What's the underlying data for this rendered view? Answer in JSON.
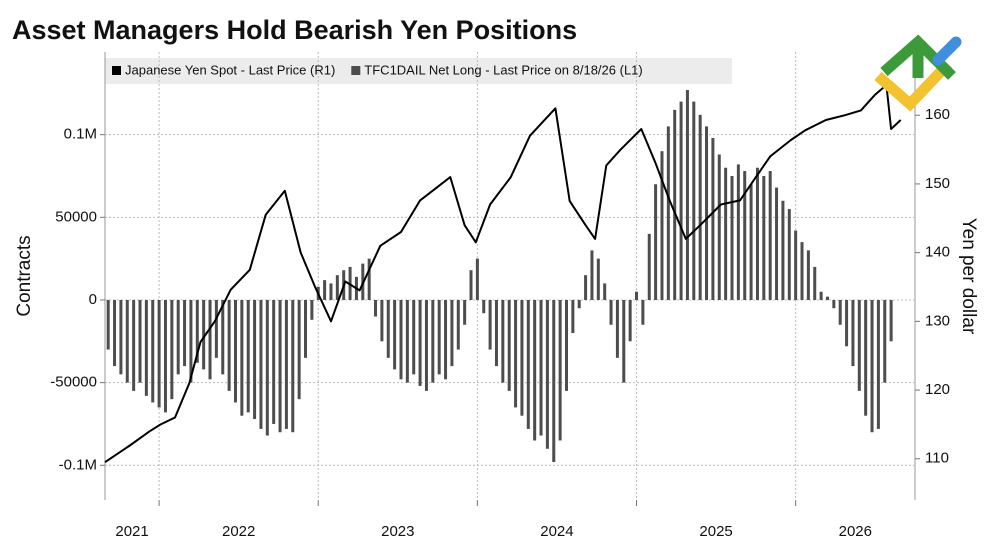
{
  "chart_data": {
    "type": "bar+line",
    "title": "Asset Managers Hold Bearish Yen Positions",
    "ylabel": "Contracts",
    "y2label": "Yen per dollar",
    "xlim": [
      2021.66,
      2026.75
    ],
    "xticks": [
      2021,
      2022,
      2023,
      2024,
      2025,
      2026
    ],
    "ylim": [
      -121000,
      150000
    ],
    "yticks": [
      {
        "value": -100000,
        "label": "-0.1M"
      },
      -50000,
      0,
      50000,
      {
        "value": 100000,
        "label": "0.1M"
      }
    ],
    "y2lim": [
      104,
      169.2
    ],
    "y2ticks": [
      110,
      120,
      130,
      140,
      150,
      160
    ],
    "grid": true,
    "legend": "top-left",
    "series": [
      {
        "name": "Japanese Yen Spot - Last Price (R1)",
        "type": "line",
        "axis": "y2",
        "color": "#000000",
        "x": [
          2021.66,
          2021.82,
          2021.94,
          2022.01,
          2022.1,
          2022.19,
          2022.26,
          2022.35,
          2022.45,
          2022.57,
          2022.67,
          2022.79,
          2022.89,
          2022.98,
          2023.08,
          2023.17,
          2023.26,
          2023.39,
          2023.52,
          2023.64,
          2023.83,
          2023.92,
          2023.99,
          2024.08,
          2024.21,
          2024.33,
          2024.49,
          2024.58,
          2024.68,
          2024.74,
          2024.81,
          2024.9,
          2025.03,
          2025.12,
          2025.21,
          2025.31,
          2025.4,
          2025.53,
          2025.65,
          2025.75,
          2025.84,
          2025.97,
          2026.06,
          2026.19,
          2026.31,
          2026.41,
          2026.5,
          2026.57,
          2026.6,
          2026.66
        ],
        "values": [
          109.5,
          112,
          114,
          115,
          116,
          121,
          127,
          130,
          134.6,
          137.5,
          145.5,
          149,
          140,
          135,
          130,
          135.8,
          134.5,
          141,
          143,
          147.6,
          151,
          144,
          141.5,
          147,
          151,
          157,
          161,
          147.5,
          144,
          142,
          152.7,
          155,
          158,
          153,
          147.5,
          142,
          144,
          147,
          147.6,
          151,
          154,
          156.4,
          157.8,
          159.3,
          160,
          160.7,
          163,
          164.4,
          158,
          159.3
        ]
      },
      {
        "name": "TFC1DAIL Net Long - Last Price on 8/18/26 (L1)",
        "type": "bar",
        "axis": "y",
        "color": "#4d4d4d",
        "x": [
          2021.68,
          2021.72,
          2021.76,
          2021.8,
          2021.84,
          2021.88,
          2021.92,
          2021.96,
          2022.0,
          2022.04,
          2022.08,
          2022.12,
          2022.16,
          2022.2,
          2022.24,
          2022.28,
          2022.32,
          2022.36,
          2022.4,
          2022.44,
          2022.48,
          2022.52,
          2022.56,
          2022.6,
          2022.64,
          2022.68,
          2022.72,
          2022.76,
          2022.8,
          2022.84,
          2022.88,
          2022.92,
          2022.96,
          2023.0,
          2023.04,
          2023.08,
          2023.12,
          2023.16,
          2023.2,
          2023.24,
          2023.28,
          2023.32,
          2023.36,
          2023.4,
          2023.44,
          2023.48,
          2023.52,
          2023.56,
          2023.6,
          2023.64,
          2023.68,
          2023.72,
          2023.76,
          2023.8,
          2023.84,
          2023.88,
          2023.92,
          2023.96,
          2024.0,
          2024.04,
          2024.08,
          2024.12,
          2024.16,
          2024.2,
          2024.24,
          2024.28,
          2024.32,
          2024.36,
          2024.4,
          2024.44,
          2024.48,
          2024.52,
          2024.56,
          2024.6,
          2024.64,
          2024.68,
          2024.72,
          2024.76,
          2024.8,
          2024.84,
          2024.88,
          2024.92,
          2024.96,
          2025.0,
          2025.04,
          2025.08,
          2025.12,
          2025.16,
          2025.2,
          2025.24,
          2025.28,
          2025.32,
          2025.36,
          2025.4,
          2025.44,
          2025.48,
          2025.52,
          2025.56,
          2025.6,
          2025.64,
          2025.68,
          2025.72,
          2025.76,
          2025.8,
          2025.84,
          2025.88,
          2025.92,
          2025.96,
          2026.0,
          2026.04,
          2026.08,
          2026.12,
          2026.16,
          2026.2,
          2026.24,
          2026.28,
          2026.32,
          2026.36,
          2026.4,
          2026.44,
          2026.48,
          2026.52,
          2026.56,
          2026.6
        ],
        "values": [
          -30000,
          -40000,
          -45000,
          -50000,
          -55000,
          -50000,
          -58000,
          -62000,
          -65000,
          -68000,
          -60000,
          -45000,
          -40000,
          -50000,
          -38000,
          -42000,
          -48000,
          -35000,
          -45000,
          -55000,
          -62000,
          -70000,
          -68000,
          -72000,
          -78000,
          -82000,
          -75000,
          -80000,
          -78000,
          -80000,
          -60000,
          -35000,
          -12000,
          8000,
          12000,
          10000,
          15000,
          18000,
          20000,
          14000,
          22000,
          25000,
          -10000,
          -25000,
          -35000,
          -42000,
          -48000,
          -50000,
          -45000,
          -52000,
          -55000,
          -50000,
          -45000,
          -48000,
          -40000,
          -30000,
          -15000,
          18000,
          25000,
          -8000,
          -30000,
          -40000,
          -50000,
          -55000,
          -65000,
          -70000,
          -78000,
          -85000,
          -82000,
          -90000,
          -98000,
          -85000,
          -55000,
          -20000,
          -5000,
          15000,
          30000,
          25000,
          10000,
          -15000,
          -35000,
          -50000,
          -25000,
          5000,
          -15000,
          40000,
          70000,
          90000,
          105000,
          115000,
          120000,
          127000,
          120000,
          112000,
          105000,
          98000,
          88000,
          80000,
          75000,
          82000,
          78000,
          70000,
          80000,
          75000,
          78000,
          68000,
          60000,
          55000,
          42000,
          35000,
          30000,
          20000,
          5000,
          2000,
          -5000,
          -15000,
          -28000,
          -40000,
          -55000,
          -70000,
          -80000,
          -78000,
          -50000,
          -25000
        ]
      }
    ]
  }
}
